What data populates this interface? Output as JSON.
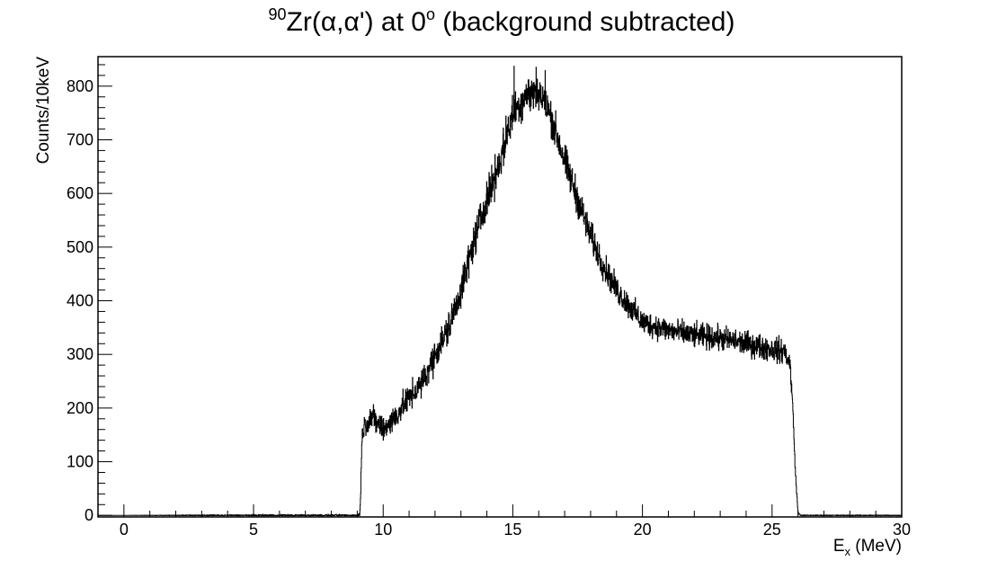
{
  "chart_data": {
    "type": "line",
    "style": "step-histogram",
    "title": {
      "prefix_superscript": "90",
      "main": "Zr(α,α') at 0",
      "degree_superscript": "o",
      "suffix": " (background subtracted)"
    },
    "xlabel": {
      "base": "E",
      "subscript": "x",
      "suffix": " (MeV)"
    },
    "ylabel": "Counts/10keV",
    "xlim": [
      -1,
      30
    ],
    "ylim": [
      -3,
      855
    ],
    "xticks": [
      0,
      5,
      10,
      15,
      20,
      25,
      30
    ],
    "yticks": [
      0,
      100,
      200,
      300,
      400,
      500,
      600,
      700,
      800
    ],
    "bin_width_MeV": 0.01,
    "grid": false,
    "legend": "none",
    "line_color": "#000000",
    "envelope": {
      "x": [
        -1,
        0,
        5,
        9.0,
        9.1,
        9.2,
        9.5,
        10.0,
        10.5,
        11.0,
        11.5,
        12.0,
        12.5,
        13.0,
        13.5,
        14.0,
        14.5,
        15.0,
        15.5,
        16.0,
        16.5,
        17.0,
        17.5,
        18.0,
        18.5,
        19.0,
        19.5,
        20.0,
        21.0,
        22.0,
        23.0,
        24.0,
        25.0,
        25.5,
        25.7,
        25.8,
        25.9,
        26.0,
        26.1,
        30
      ],
      "y": [
        0,
        0,
        0,
        0,
        0,
        160,
        185,
        160,
        185,
        220,
        245,
        300,
        345,
        420,
        510,
        590,
        660,
        750,
        785,
        790,
        740,
        660,
        590,
        520,
        465,
        420,
        390,
        360,
        345,
        335,
        330,
        320,
        310,
        305,
        280,
        200,
        80,
        5,
        0,
        0
      ],
      "noise_amplitude": [
        0,
        0,
        2,
        2,
        10,
        25,
        30,
        30,
        30,
        30,
        32,
        35,
        38,
        40,
        40,
        42,
        45,
        45,
        45,
        45,
        42,
        40,
        38,
        35,
        32,
        30,
        30,
        28,
        28,
        28,
        28,
        28,
        28,
        28,
        25,
        15,
        8,
        2,
        1,
        1
      ]
    },
    "highlighted_points": [
      {
        "x": 15.05,
        "y": 838
      },
      {
        "x": 15.9,
        "y": 836
      },
      {
        "x": 16.25,
        "y": 830
      }
    ]
  }
}
